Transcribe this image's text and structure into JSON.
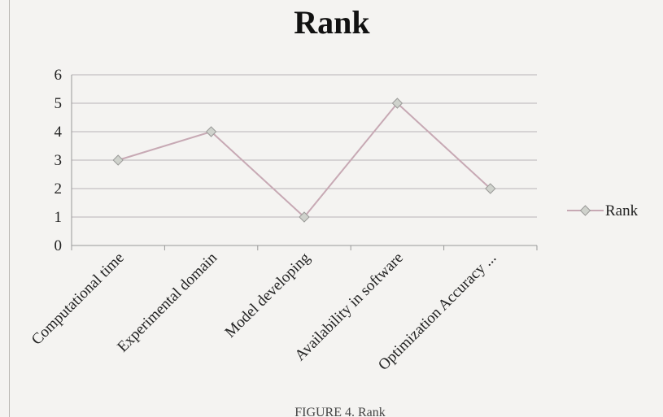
{
  "chart_data": {
    "type": "line",
    "title": "Rank",
    "xlabel": "",
    "ylabel": "",
    "categories": [
      "Computational time",
      "Experimental domain",
      "Model developing",
      "Availability in software",
      "Optimization Accuracy ..."
    ],
    "series": [
      {
        "name": "Rank",
        "values": [
          3,
          4,
          1,
          5,
          2
        ]
      }
    ],
    "ylim": [
      0,
      6
    ],
    "yticks": [
      "0",
      "1",
      "2",
      "3",
      "4",
      "5",
      "6"
    ],
    "grid": true,
    "legend": "right",
    "colors": {
      "line": "#c7a9b4",
      "marker": "#cfd2cc",
      "grid": "#b9b3b6"
    }
  },
  "caption": "FIGURE 4. Rank"
}
